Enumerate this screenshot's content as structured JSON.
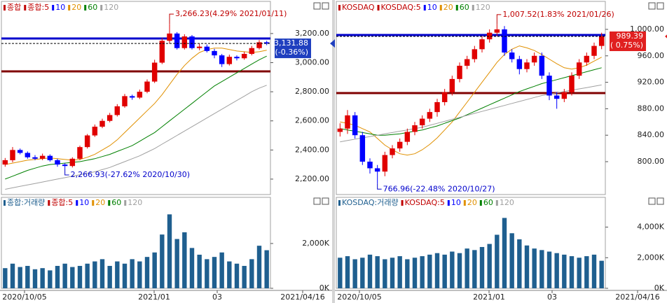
{
  "panels": [
    {
      "legend": [
        {
          "label": "종합",
          "color": "#c00000"
        },
        {
          "label": "종합:5",
          "color": "#c00000"
        },
        {
          "label": "10",
          "color": "#0000ff"
        },
        {
          "label": "20",
          "color": "#e09000"
        },
        {
          "label": "60",
          "color": "#008000"
        },
        {
          "label": "120",
          "color": "#a0a0a0"
        }
      ],
      "price": {
        "ylim": [
          2094,
          3363
        ],
        "yticks": [
          {
            "value": 3200,
            "label": "3,200.00"
          },
          {
            "value": 3000,
            "label": "3,000.00"
          },
          {
            "value": 2800,
            "label": "2,800.00"
          },
          {
            "value": 2600,
            "label": "2,600.00"
          },
          {
            "value": 2400,
            "label": "2,400.00"
          },
          {
            "value": 2200,
            "label": "2,200.00"
          }
        ],
        "open": [
          2300,
          2330,
          2400,
          2380,
          2350,
          2340,
          2360,
          2330,
          2300,
          2290,
          2340,
          2420,
          2500,
          2560,
          2600,
          2640,
          2700,
          2770,
          2760,
          2800,
          2870,
          3000,
          3150,
          3200,
          3100,
          3180,
          3100,
          3110,
          3080,
          3050,
          2990,
          3040,
          3030,
          3060,
          3100,
          3140
        ],
        "high": [
          2345,
          2420,
          2410,
          2390,
          2365,
          2375,
          2370,
          2340,
          2310,
          2350,
          2430,
          2510,
          2575,
          2615,
          2655,
          2715,
          2785,
          2780,
          2815,
          2885,
          3020,
          3170,
          3266.23,
          3210,
          3195,
          3190,
          3130,
          3125,
          3095,
          3060,
          3055,
          3050,
          3075,
          3115,
          3155,
          3150
        ],
        "low": [
          2285,
          2315,
          2370,
          2340,
          2330,
          2330,
          2320,
          2285,
          2266.93,
          2280,
          2330,
          2410,
          2490,
          2550,
          2590,
          2630,
          2690,
          2745,
          2750,
          2790,
          2860,
          2990,
          3130,
          3090,
          3090,
          3090,
          3085,
          3070,
          3030,
          2970,
          2980,
          3015,
          3020,
          3050,
          3090,
          3120
        ],
        "close": [
          2330,
          2400,
          2380,
          2350,
          2340,
          2360,
          2330,
          2300,
          2290,
          2340,
          2420,
          2500,
          2560,
          2600,
          2640,
          2700,
          2770,
          2760,
          2800,
          2870,
          3000,
          3150,
          3200,
          3100,
          3180,
          3100,
          3110,
          3080,
          3050,
          2990,
          3040,
          3030,
          3060,
          3100,
          3140,
          3131.88
        ],
        "ma": [
          {
            "color": "#e09000",
            "values": [
              2300,
              2310,
              2320,
              2330,
              2335,
              2340,
              2345,
              2340,
              2335,
              2330,
              2335,
              2350,
              2370,
              2400,
              2430,
              2470,
              2520,
              2570,
              2620,
              2670,
              2720,
              2780,
              2850,
              2920,
              2980,
              3030,
              3070,
              3090,
              3100,
              3100,
              3090,
              3080,
              3075,
              3070,
              3075,
              3085
            ]
          },
          {
            "color": "#008000",
            "values": [
              2200,
              2220,
              2240,
              2260,
              2275,
              2290,
              2300,
              2305,
              2310,
              2315,
              2320,
              2330,
              2340,
              2355,
              2370,
              2390,
              2410,
              2430,
              2460,
              2490,
              2520,
              2560,
              2600,
              2640,
              2680,
              2720,
              2760,
              2800,
              2840,
              2870,
              2900,
              2930,
              2960,
              2990,
              3020,
              3045
            ]
          },
          {
            "color": "#a0a0a0",
            "values": [
              2130,
              2140,
              2150,
              2160,
              2170,
              2180,
              2190,
              2200,
              2210,
              2220,
              2230,
              2240,
              2250,
              2265,
              2280,
              2300,
              2320,
              2340,
              2360,
              2385,
              2410,
              2440,
              2470,
              2500,
              2530,
              2560,
              2590,
              2620,
              2650,
              2680,
              2710,
              2740,
              2770,
              2800,
              2825,
              2845
            ]
          }
        ],
        "levels": [
          {
            "value": 3166,
            "color": "#0000cc"
          },
          {
            "value": 2940,
            "color": "#800000"
          }
        ],
        "high_note": "3,266.23(4.29% 2021/01/11)",
        "low_note": "2,266.93(-27.62% 2020/10/30)",
        "last_label": "3,131.88",
        "last_change": "(-0.36%)",
        "flag_color": "#1f3fbf"
      },
      "volume": {
        "legend": [
          {
            "label": "종합:거래량",
            "color": "#1f5f8f"
          },
          {
            "label": "종합:5",
            "color": "#c00000"
          },
          {
            "label": "10",
            "color": "#0000ff"
          },
          {
            "label": "20",
            "color": "#e09000"
          },
          {
            "label": "60",
            "color": "#008000"
          },
          {
            "label": "120",
            "color": "#a0a0a0"
          }
        ],
        "ylim": [
          0,
          3810
        ],
        "yticks": [
          {
            "value": 2000,
            "label": "2,000K"
          },
          {
            "value": 0,
            "label": "0K"
          }
        ],
        "color": "#1f5f8f",
        "values": [
          900,
          1100,
          950,
          1000,
          850,
          900,
          800,
          1000,
          1100,
          950,
          1000,
          1100,
          1200,
          1300,
          1000,
          1200,
          1100,
          1300,
          1200,
          1400,
          1600,
          2400,
          3300,
          2200,
          2500,
          1800,
          1500,
          1300,
          1400,
          1600,
          1200,
          1100,
          1000,
          1300,
          1900,
          1700
        ]
      },
      "dates": [
        "2020/10/05",
        "2021/01",
        "03",
        "2021/04/16"
      ]
    },
    {
      "legend": [
        {
          "label": "KOSDAQ",
          "color": "#c00000"
        },
        {
          "label": "KOSDAQ:5",
          "color": "#c00000"
        },
        {
          "label": "10",
          "color": "#0000ff"
        },
        {
          "label": "20",
          "color": "#e09000"
        },
        {
          "label": "60",
          "color": "#008000"
        },
        {
          "label": "120",
          "color": "#a0a0a0"
        }
      ],
      "price": {
        "ylim": [
          750.3,
          1029.6
        ],
        "yticks": [
          {
            "value": 1000,
            "label": "1,000.00"
          },
          {
            "value": 960,
            "label": "960.00"
          },
          {
            "value": 920,
            "label": "920.00"
          },
          {
            "value": 880,
            "label": "880.00"
          },
          {
            "value": 840,
            "label": "840.00"
          },
          {
            "value": 800,
            "label": "800.00"
          }
        ],
        "open": [
          845,
          850,
          870,
          840,
          800,
          790,
          785,
          810,
          820,
          830,
          845,
          855,
          865,
          875,
          890,
          905,
          925,
          945,
          955,
          970,
          985,
          995,
          1000,
          965,
          955,
          940,
          950,
          960,
          930,
          900,
          895,
          905,
          930,
          950,
          960,
          975
        ],
        "high": [
          858,
          878,
          875,
          845,
          805,
          795,
          815,
          825,
          835,
          850,
          860,
          870,
          880,
          895,
          910,
          930,
          950,
          960,
          975,
          990,
          1000,
          1007.52,
          1005,
          970,
          960,
          955,
          965,
          965,
          935,
          905,
          910,
          935,
          955,
          965,
          980,
          995
        ],
        "low": [
          838,
          842,
          835,
          795,
          782,
          766.96,
          778,
          805,
          815,
          825,
          840,
          850,
          860,
          868,
          885,
          900,
          920,
          940,
          950,
          965,
          980,
          990,
          960,
          950,
          932,
          935,
          945,
          925,
          893,
          880,
          890,
          900,
          925,
          945,
          955,
          970
        ],
        "close": [
          850,
          870,
          840,
          800,
          790,
          785,
          810,
          820,
          830,
          845,
          855,
          865,
          875,
          890,
          905,
          925,
          945,
          955,
          970,
          985,
          995,
          1000,
          965,
          955,
          940,
          950,
          960,
          930,
          900,
          895,
          905,
          930,
          950,
          960,
          975,
          989.39
        ],
        "ma": [
          {
            "color": "#e09000",
            "values": [
              860,
              858,
              855,
              850,
              845,
              835,
              825,
              818,
              812,
              810,
              812,
              818,
              826,
              836,
              848,
              860,
              875,
              890,
              905,
              920,
              935,
              950,
              962,
              970,
              975,
              972,
              968,
              962,
              955,
              948,
              942,
              940,
              942,
              946,
              952,
              958
            ]
          },
          {
            "color": "#008000",
            "values": [
              850,
              848,
              846,
              844,
              842,
              840,
              840,
              841,
              842,
              844,
              846,
              848,
              851,
              854,
              858,
              862,
              866,
              871,
              876,
              881,
              886,
              891,
              896,
              901,
              906,
              910,
              914,
              918,
              921,
              924,
              927,
              930,
              933,
              936,
              939,
              942
            ]
          },
          {
            "color": "#a0a0a0",
            "values": [
              830,
              832,
              834,
              836,
              838,
              840,
              842,
              844,
              846,
              848,
              850,
              852,
              855,
              858,
              861,
              864,
              867,
              870,
              873,
              876,
              879,
              882,
              885,
              888,
              891,
              894,
              897,
              900,
              902,
              904,
              906,
              908,
              910,
              912,
              914,
              916
            ]
          }
        ],
        "levels": [
          {
            "value": 991.5,
            "color": "#0000cc"
          },
          {
            "value": 903.7,
            "color": "#800000"
          }
        ],
        "high_note": "1,007.52(1.83% 2021/01/26)",
        "low_note": "766.96(-22.48% 2020/10/27)",
        "last_label": "989.39",
        "last_change": "( 0.75%)",
        "flag_color": "#e02020"
      },
      "volume": {
        "legend": [
          {
            "label": "KOSDAQ:거래량",
            "color": "#1f5f8f"
          },
          {
            "label": "KOSDAQ:5",
            "color": "#c00000"
          },
          {
            "label": "10",
            "color": "#0000ff"
          },
          {
            "label": "20",
            "color": "#e09000"
          },
          {
            "label": "60",
            "color": "#008000"
          },
          {
            "label": "120",
            "color": "#a0a0a0"
          }
        ],
        "ylim": [
          0,
          5580
        ],
        "yticks": [
          {
            "value": 4000,
            "label": "4,000K"
          },
          {
            "value": 2000,
            "label": "2,000K"
          },
          {
            "value": 0,
            "label": "0K"
          }
        ],
        "color": "#1f5f8f",
        "values": [
          2000,
          2100,
          1900,
          2000,
          2200,
          2100,
          1900,
          2000,
          2100,
          1900,
          2000,
          2100,
          2200,
          2300,
          2200,
          2400,
          2300,
          2600,
          2500,
          2700,
          2900,
          3500,
          4600,
          3600,
          3200,
          2800,
          2600,
          2500,
          2400,
          2300,
          2200,
          2100,
          2000,
          2100,
          2200,
          1800
        ]
      },
      "dates": [
        "2020/10/05",
        "2021/01",
        "03",
        "2021/04/16"
      ]
    }
  ]
}
